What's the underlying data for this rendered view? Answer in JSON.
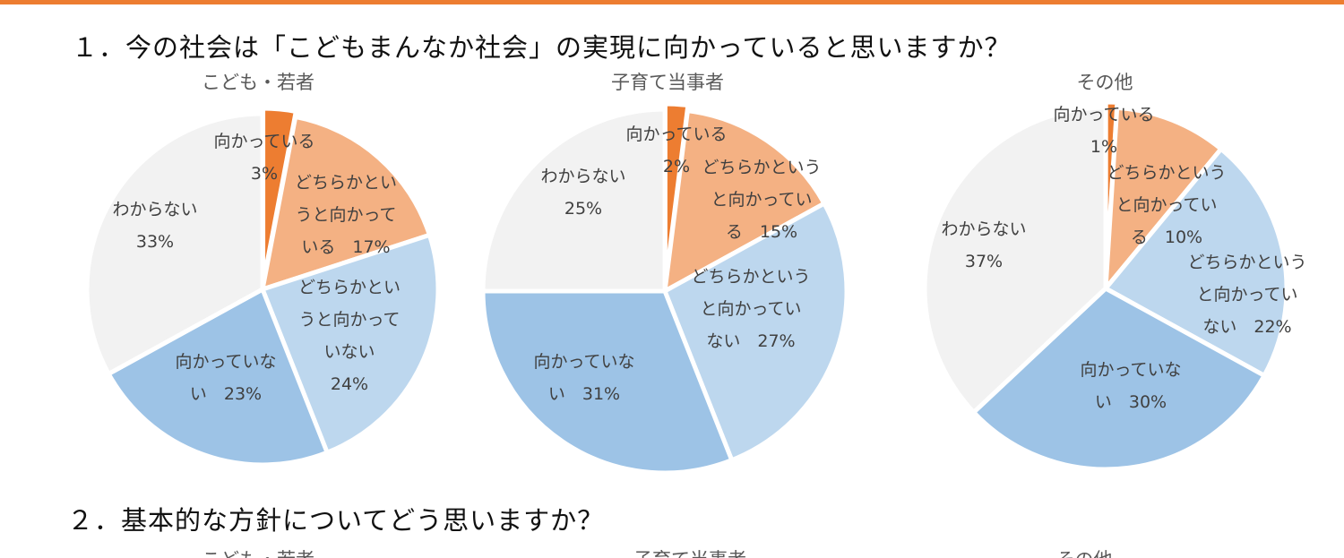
{
  "question1": "１．今の社会は「こどもまんなか社会」の実現に向かっていると思いますか？",
  "question2": "２．基本的な方針についてどう思いますか？",
  "question2_chart_titles": [
    "こども・若者",
    "子育て当事者",
    "その他"
  ],
  "colors": [
    "#ED7D31",
    "#F4B183",
    "#BDD7EE",
    "#9DC3E6",
    "#F2F2F2"
  ],
  "chart_data": [
    {
      "type": "pie",
      "title": "こども・若者",
      "categories": [
        "向かっている",
        "どちらかというと向かっている",
        "どちらかというと向かっていない",
        "向かっていない",
        "わからない"
      ],
      "values": [
        3,
        17,
        24,
        23,
        33
      ],
      "labels": [
        [
          "向かっている",
          "3%"
        ],
        [
          "どちらかとい",
          "うと向かって",
          "いる　17%"
        ],
        [
          "どちらかとい",
          "うと向かって",
          "いない",
          "24%"
        ],
        [
          "向かっていな",
          "い　23%"
        ],
        [
          "わからない",
          "33%"
        ]
      ]
    },
    {
      "type": "pie",
      "title": "子育て当事者",
      "categories": [
        "向かっている",
        "どちらかというと向かっている",
        "どちらかというと向かっていない",
        "向かっていない",
        "わからない"
      ],
      "values": [
        2,
        15,
        27,
        31,
        25
      ],
      "labels": [
        [
          "向かっている",
          "2%"
        ],
        [
          "どちらかという",
          "と向かってい",
          "る　15%"
        ],
        [
          "どちらかという",
          "と向かってい",
          "ない　27%"
        ],
        [
          "向かっていな",
          "い　31%"
        ],
        [
          "わからない",
          "25%"
        ]
      ]
    },
    {
      "type": "pie",
      "title": "その他",
      "categories": [
        "向かっている",
        "どちらかというと向かっている",
        "どちらかというと向かっていない",
        "向かっていない",
        "わからない"
      ],
      "values": [
        1,
        10,
        22,
        30,
        37
      ],
      "labels": [
        [
          "向かっている",
          "1%"
        ],
        [
          "どちらかという",
          "と向かってい",
          "る　10%"
        ],
        [
          "どちらかという",
          "と向かってい",
          "ない　22%"
        ],
        [
          "向かっていな",
          "い　30%"
        ],
        [
          "わからない",
          "37%"
        ]
      ]
    }
  ]
}
